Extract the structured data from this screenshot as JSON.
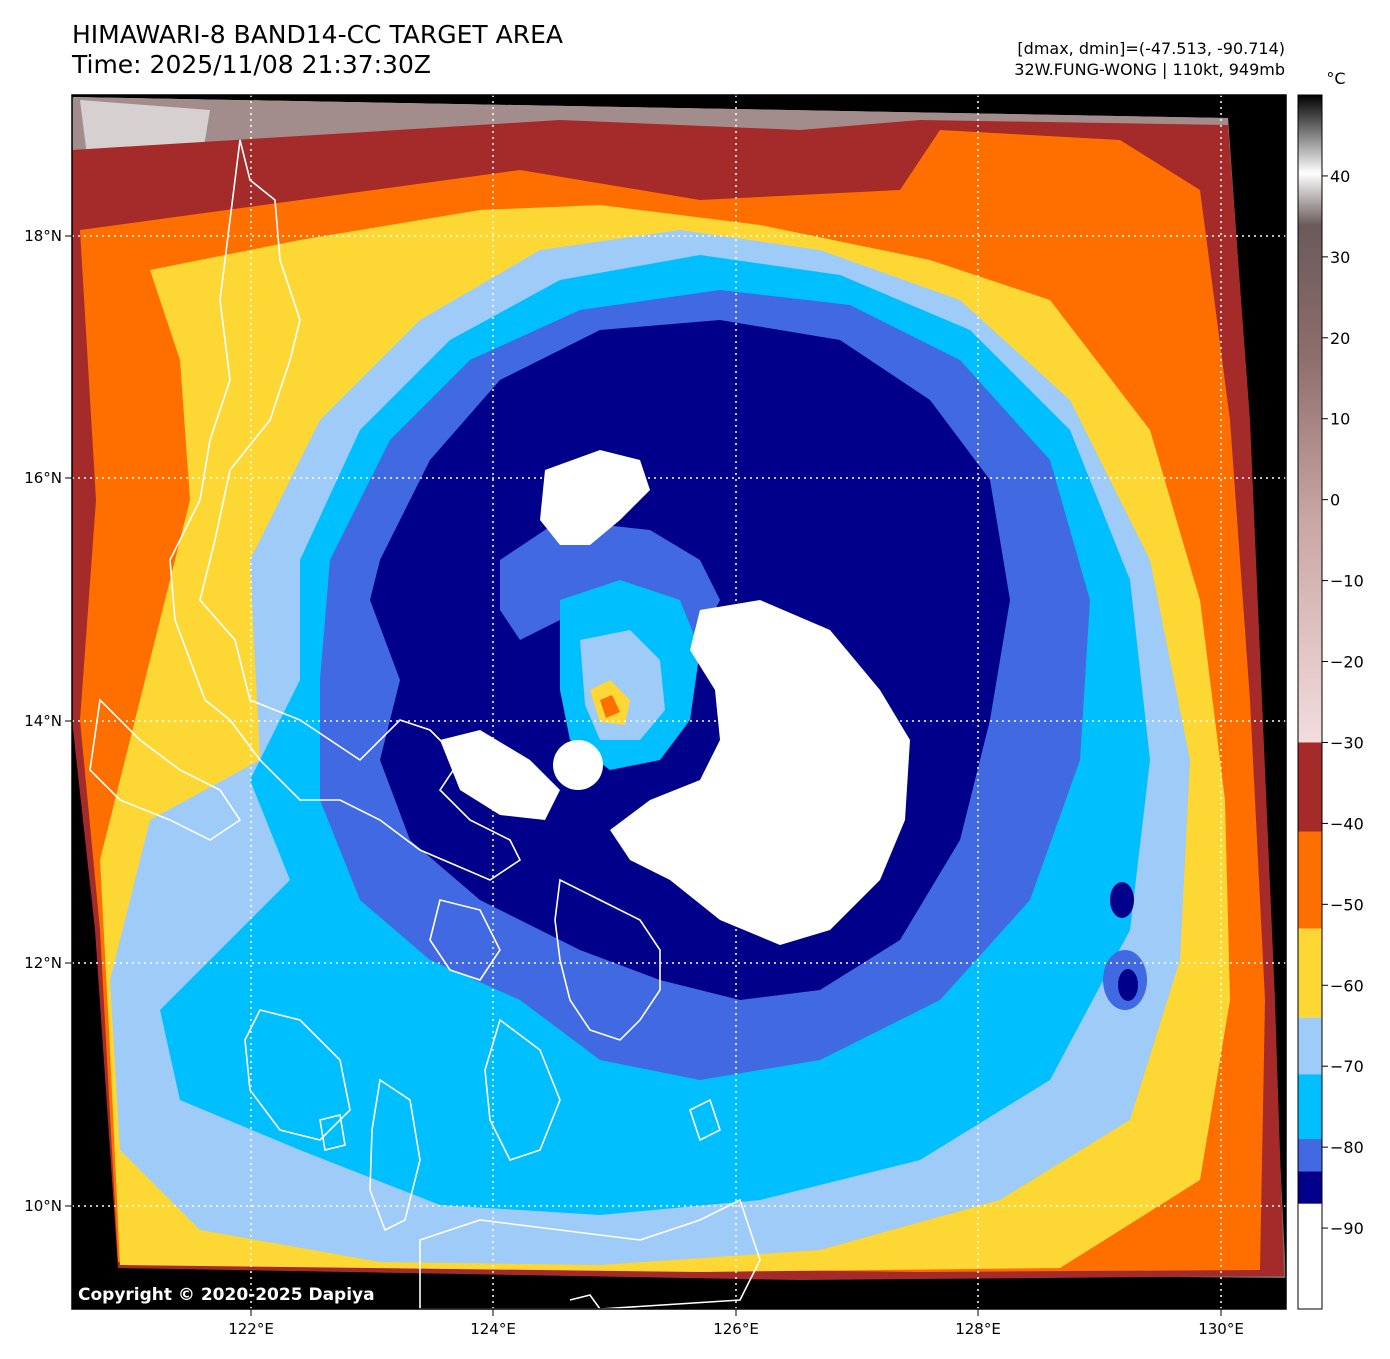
{
  "header": {
    "title_line1": "HIMAWARI-8 BAND14-CC TARGET AREA",
    "title_line2": "Time: 2025/11/08 21:37:30Z",
    "dmax_dmin": "[dmax, dmin]=(-47.513, -90.714)",
    "storm_info": "32W.FUNG-WONG | 110kt, 949mb"
  },
  "map": {
    "lon_ticks": [
      "122°E",
      "124°E",
      "126°E",
      "128°E",
      "130°E"
    ],
    "lat_ticks": [
      "18°N",
      "16°N",
      "14°N",
      "12°N",
      "10°N"
    ],
    "copyright": "Copyright © 2020-2025 Dapiya"
  },
  "colorbar": {
    "unit": "°C",
    "tick_labels": [
      "40",
      "30",
      "20",
      "10",
      "0",
      "−10",
      "−20",
      "−30",
      "−40",
      "−50",
      "−60",
      "−70",
      "−80",
      "−90"
    ],
    "bands": [
      {
        "from": -30,
        "to": -41,
        "color": "#a52a2a"
      },
      {
        "from": -41,
        "to": -53,
        "color": "#ff6f00"
      },
      {
        "from": -53,
        "to": -64,
        "color": "#fdd835"
      },
      {
        "from": -64,
        "to": -71,
        "color": "#9ecbf7"
      },
      {
        "from": -71,
        "to": -79,
        "color": "#00bfff"
      },
      {
        "from": -79,
        "to": -83,
        "color": "#4169e1"
      },
      {
        "from": -83,
        "to": -87,
        "color": "#00008b"
      },
      {
        "from": -87,
        "to": -100,
        "color": "#ffffff"
      }
    ]
  },
  "colors": {
    "cold_white": "#ffffff",
    "navy": "#00008b",
    "royal_blue": "#4169e1",
    "deep_sky": "#00bfff",
    "light_blue": "#9ecbf7",
    "yellow": "#fdd835",
    "orange": "#ff6f00",
    "dark_red": "#a52a2a",
    "warm_gray": "#9c8584",
    "coastline": "#ffffff"
  }
}
